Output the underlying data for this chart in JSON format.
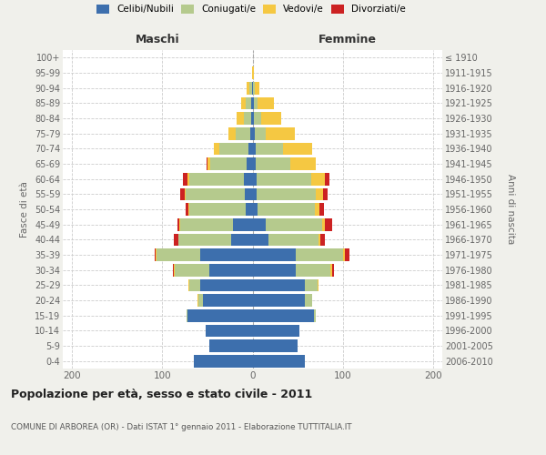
{
  "age_groups": [
    "0-4",
    "5-9",
    "10-14",
    "15-19",
    "20-24",
    "25-29",
    "30-34",
    "35-39",
    "40-44",
    "45-49",
    "50-54",
    "55-59",
    "60-64",
    "65-69",
    "70-74",
    "75-79",
    "80-84",
    "85-89",
    "90-94",
    "95-99",
    "100+"
  ],
  "birth_years": [
    "2006-2010",
    "2001-2005",
    "1996-2000",
    "1991-1995",
    "1986-1990",
    "1981-1985",
    "1976-1980",
    "1971-1975",
    "1966-1970",
    "1961-1965",
    "1956-1960",
    "1951-1955",
    "1946-1950",
    "1941-1945",
    "1936-1940",
    "1931-1935",
    "1926-1930",
    "1921-1925",
    "1916-1920",
    "1911-1915",
    "≤ 1910"
  ],
  "maschi": {
    "celibi": [
      65,
      48,
      52,
      72,
      55,
      58,
      48,
      58,
      24,
      22,
      8,
      9,
      10,
      7,
      5,
      3,
      2,
      2,
      1,
      0,
      0
    ],
    "coniugati": [
      0,
      0,
      0,
      1,
      5,
      12,
      38,
      48,
      58,
      58,
      62,
      65,
      60,
      40,
      32,
      16,
      8,
      6,
      3,
      0,
      0
    ],
    "vedovi": [
      0,
      0,
      0,
      0,
      1,
      1,
      1,
      1,
      0,
      1,
      1,
      1,
      2,
      3,
      6,
      8,
      8,
      5,
      3,
      1,
      0
    ],
    "divorziati": [
      0,
      0,
      0,
      0,
      0,
      0,
      1,
      1,
      5,
      2,
      3,
      5,
      5,
      1,
      0,
      0,
      0,
      0,
      0,
      0,
      0
    ]
  },
  "femmine": {
    "nubili": [
      58,
      50,
      52,
      68,
      58,
      58,
      48,
      48,
      18,
      15,
      6,
      5,
      5,
      4,
      4,
      3,
      2,
      2,
      1,
      0,
      0
    ],
    "coniugate": [
      0,
      0,
      0,
      2,
      8,
      14,
      38,
      52,
      55,
      62,
      63,
      65,
      60,
      38,
      30,
      12,
      8,
      4,
      2,
      0,
      0
    ],
    "vedove": [
      0,
      0,
      0,
      0,
      0,
      1,
      2,
      2,
      2,
      3,
      5,
      8,
      15,
      28,
      32,
      32,
      22,
      18,
      5,
      2,
      0
    ],
    "divorziate": [
      0,
      0,
      0,
      0,
      0,
      0,
      2,
      5,
      5,
      8,
      5,
      5,
      5,
      0,
      0,
      0,
      0,
      0,
      0,
      0,
      0
    ]
  },
  "colors": {
    "celibi": "#3d6fad",
    "coniugati": "#b5ca8d",
    "vedovi": "#f5c842",
    "divorziati": "#cc2222"
  },
  "xlim": 210,
  "xticks": [
    -200,
    -100,
    0,
    100,
    200
  ],
  "title": "Popolazione per età, sesso e stato civile - 2011",
  "subtitle": "COMUNE DI ARBOREA (OR) - Dati ISTAT 1° gennaio 2011 - Elaborazione TUTTITALIA.IT",
  "ylabel_left": "Fasce di età",
  "ylabel_right": "Anni di nascita",
  "xlabel_maschi": "Maschi",
  "xlabel_femmine": "Femmine",
  "bg_color": "#f0f0eb",
  "plot_bg": "#ffffff"
}
